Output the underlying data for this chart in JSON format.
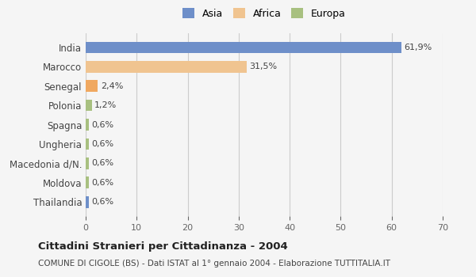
{
  "categories": [
    "India",
    "Marocco",
    "Senegal",
    "Polonia",
    "Spagna",
    "Ungheria",
    "Macedonia d/N.",
    "Moldova",
    "Thailandia"
  ],
  "values": [
    61.9,
    31.5,
    2.4,
    1.2,
    0.6,
    0.6,
    0.6,
    0.6,
    0.6
  ],
  "colors": [
    "#6e8fc9",
    "#f0c490",
    "#f0a860",
    "#a8c080",
    "#a8c080",
    "#a8c080",
    "#a8c080",
    "#a8c080",
    "#6e8fc9"
  ],
  "labels": [
    "61,9%",
    "31,5%",
    "2,4%",
    "1,2%",
    "0,6%",
    "0,6%",
    "0,6%",
    "0,6%",
    "0,6%"
  ],
  "legend_labels": [
    "Asia",
    "Africa",
    "Europa"
  ],
  "legend_colors": [
    "#6e8fc9",
    "#f0c490",
    "#a8c080"
  ],
  "xlim": [
    0,
    70
  ],
  "xticks": [
    0,
    10,
    20,
    30,
    40,
    50,
    60,
    70
  ],
  "title": "Cittadini Stranieri per Cittadinanza - 2004",
  "subtitle": "COMUNE DI CIGOLE (BS) - Dati ISTAT al 1° gennaio 2004 - Elaborazione TUTTITALIA.IT",
  "bg_color": "#f5f5f5",
  "grid_color": "#cccccc",
  "bar_height": 0.6
}
